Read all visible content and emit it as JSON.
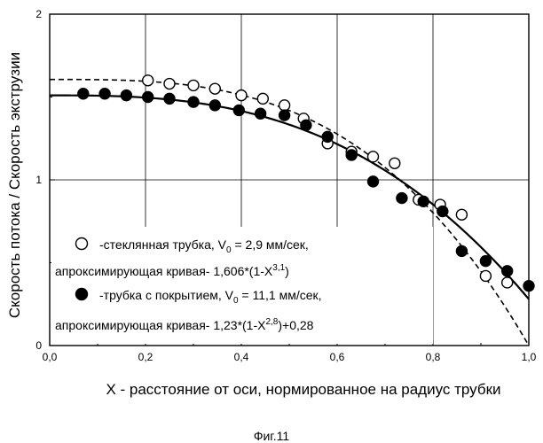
{
  "caption": "Фиг.11",
  "chart_data": {
    "type": "scatter",
    "title": "",
    "xlabel": "X -  расстояние от оси, нормированное на радиус трубки",
    "ylabel": "Скорость потока / Скорость экструзии",
    "xlim": [
      0.0,
      1.0
    ],
    "ylim": [
      0,
      2
    ],
    "x_ticks": [
      0.0,
      0.2,
      0.4,
      0.6,
      0.8,
      1.0
    ],
    "x_tick_labels": [
      "0,0",
      "0,2",
      "0,4",
      "0,6",
      "0,8",
      "1,0"
    ],
    "y_ticks": [
      0,
      1,
      2
    ],
    "y_tick_labels": [
      "0",
      "1",
      "2"
    ],
    "grid": true,
    "legend_placement": "bottom-left",
    "series": [
      {
        "name": "-стеклянная трубка, V0 = 2,9 мм/сек,",
        "marker": "open-circle",
        "points": [
          [
            0.205,
            1.6
          ],
          [
            0.25,
            1.58
          ],
          [
            0.3,
            1.57
          ],
          [
            0.345,
            1.55
          ],
          [
            0.4,
            1.51
          ],
          [
            0.445,
            1.49
          ],
          [
            0.49,
            1.45
          ],
          [
            0.53,
            1.37
          ],
          [
            0.58,
            1.22
          ],
          [
            0.63,
            1.17
          ],
          [
            0.675,
            1.14
          ],
          [
            0.72,
            1.1
          ],
          [
            0.77,
            0.88
          ],
          [
            0.815,
            0.85
          ],
          [
            0.86,
            0.79
          ],
          [
            0.91,
            0.42
          ],
          [
            0.955,
            0.38
          ]
        ]
      },
      {
        "name": "-трубка с покрытием, V0 = 11,1 мм/сек,",
        "marker": "filled-circle",
        "points": [
          [
            0.07,
            1.52
          ],
          [
            0.115,
            1.52
          ],
          [
            0.16,
            1.51
          ],
          [
            0.205,
            1.5
          ],
          [
            0.25,
            1.49
          ],
          [
            0.3,
            1.47
          ],
          [
            0.345,
            1.45
          ],
          [
            0.395,
            1.42
          ],
          [
            0.44,
            1.4
          ],
          [
            0.49,
            1.39
          ],
          [
            0.535,
            1.33
          ],
          [
            0.58,
            1.26
          ],
          [
            0.63,
            1.15
          ],
          [
            0.675,
            0.99
          ],
          [
            0.735,
            0.89
          ],
          [
            0.78,
            0.87
          ],
          [
            0.82,
            0.81
          ],
          [
            0.86,
            0.57
          ],
          [
            0.91,
            0.51
          ],
          [
            0.955,
            0.45
          ],
          [
            1.0,
            0.36
          ]
        ]
      },
      {
        "name": "апроксимирующая кривая- 1,606*(1-X3,1)",
        "style": "dashed",
        "formula": {
          "a": 1.606,
          "n": 3.1,
          "c": 0.0
        }
      },
      {
        "name": "апроксимирующая кривая- 1,23*(1-X2,8)+0,28",
        "style": "solid",
        "formula": {
          "a": 1.23,
          "n": 2.8,
          "c": 0.28
        }
      }
    ],
    "legend": [
      {
        "marker": "open-circle",
        "line1": {
          "pre": "-стеклянная трубка, V",
          "sub": "0",
          "post": " = 2,9 мм/сек,"
        },
        "line2": {
          "pre": "апроксимирующая кривая- 1,606*(1-X",
          "sup": "3,1",
          "post": ")"
        }
      },
      {
        "marker": "filled-circle",
        "line1": {
          "pre": "-трубка с покрытием, V",
          "sub": "0",
          "post": " = 11,1 мм/сек,"
        },
        "line2": {
          "pre": "апроксимирующая кривая- 1,23*(1-X",
          "sup": "2,8",
          "post": ")+0,28"
        }
      }
    ]
  }
}
